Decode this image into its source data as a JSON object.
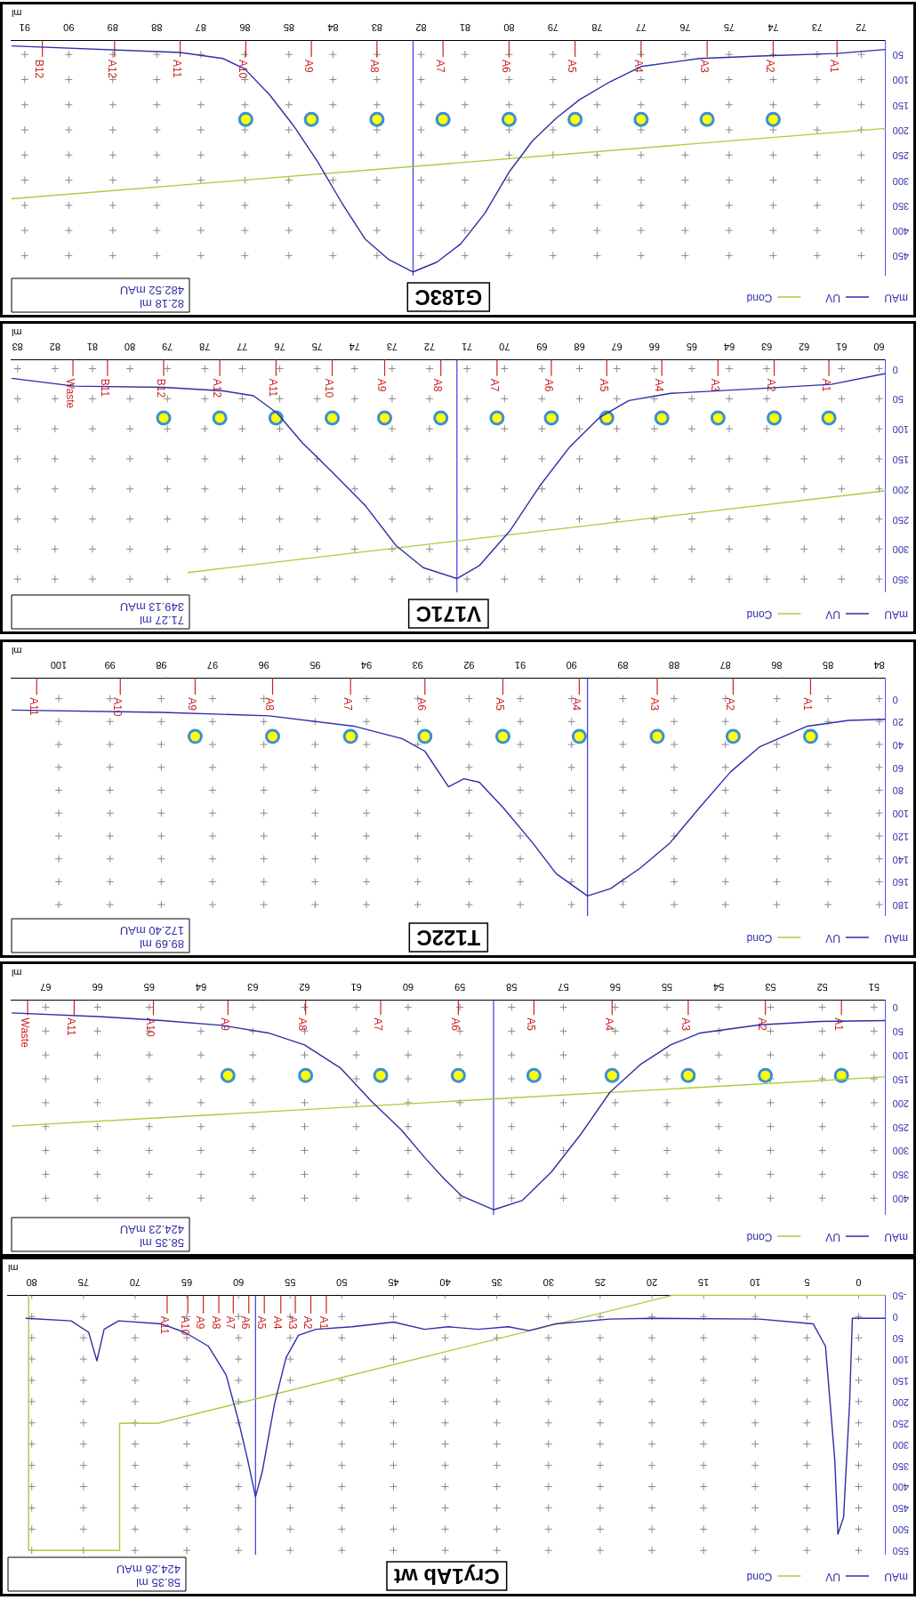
{
  "chart_data": [
    {
      "type": "line",
      "title": "Cry1Ab wt",
      "xlabel": "ml",
      "ylabel": "mAU",
      "xlim": [
        82.3,
        -2.6
      ],
      "ylim": [
        560,
        -50
      ],
      "xticks": [
        0,
        5,
        10,
        15,
        20,
        25,
        30,
        35,
        40,
        45,
        50,
        55,
        60,
        65,
        70,
        75,
        80
      ],
      "yticks": [
        -50,
        0,
        50,
        100,
        150,
        200,
        250,
        300,
        350,
        400,
        450,
        500,
        550
      ],
      "grid": true,
      "legend": "bottom right",
      "series": [
        {
          "name": "UV",
          "color": "#2e2ea8",
          "x": [
            -2.6,
            0.6,
            0.87,
            1.45,
            2.0,
            2.3,
            3.2,
            4.4,
            9.6,
            20.0,
            24.1,
            29.3,
            31.9,
            33.9,
            36.8,
            39.7,
            42.0,
            45.0,
            49.0,
            52.5,
            54.2,
            55.4,
            56.5,
            57.7,
            58.35,
            59.1,
            60.0,
            61.2,
            62.9,
            65.2,
            67.5,
            71.6,
            73.0,
            73.7,
            74.5,
            76.2,
            80.6
          ],
          "values": [
            4,
            4,
            204,
            472,
            512,
            338,
            70,
            17,
            6,
            4,
            6,
            17,
            33,
            24,
            30,
            24,
            30,
            13,
            24,
            30,
            44,
            97,
            204,
            365,
            424.26,
            338,
            245,
            137,
            70,
            37,
            17,
            10,
            30,
            104,
            37,
            10,
            4
          ]
        },
        {
          "name": "Cond",
          "color": "#a8cc3c",
          "x": [
            -2.6,
            18,
            67.8,
            71.5,
            71.5,
            80.3,
            80.3
          ],
          "values": [
            -50,
            -50,
            251,
            251,
            550,
            550,
            -50
          ]
        }
      ],
      "ref_lines": [
        {
          "axis": "x",
          "value": 58.35,
          "color": "#3b3bdf"
        },
        {
          "axis": "x",
          "value": 66.9,
          "label": "A11",
          "color": "#cc2222"
        },
        {
          "axis": "x",
          "value": 64.9,
          "label": "A10",
          "color": "#cc2222"
        },
        {
          "axis": "x",
          "value": 63.4,
          "label": "A9",
          "color": "#cc2222"
        },
        {
          "axis": "x",
          "value": 61.9,
          "label": "A8",
          "color": "#cc2222"
        },
        {
          "axis": "x",
          "value": 60.5,
          "label": "A7",
          "color": "#cc2222"
        },
        {
          "axis": "x",
          "value": 59.0,
          "label": "A6",
          "color": "#cc2222"
        },
        {
          "axis": "x",
          "value": 57.5,
          "label": "A5",
          "color": "#cc2222"
        },
        {
          "axis": "x",
          "value": 55.9,
          "label": "A4",
          "color": "#cc2222"
        },
        {
          "axis": "x",
          "value": 54.5,
          "label": "A3",
          "color": "#cc2222"
        },
        {
          "axis": "x",
          "value": 53.0,
          "label": "A2",
          "color": "#cc2222"
        },
        {
          "axis": "x",
          "value": 51.5,
          "label": "A1",
          "color": "#cc2222"
        }
      ],
      "annotations": [
        "58.35 ml",
        "424.26 mAU"
      ]
    },
    {
      "type": "line",
      "xlabel": "ml",
      "ylabel": "mAU",
      "xlim": [
        67.66,
        50.78
      ],
      "ylim": [
        435,
        -15
      ],
      "xticks": [
        51,
        52,
        53,
        54,
        55,
        56,
        57,
        58,
        59,
        60,
        61,
        62,
        63,
        64,
        65,
        66,
        67
      ],
      "yticks": [
        0,
        50,
        100,
        150,
        200,
        250,
        300,
        350,
        400
      ],
      "grid": true,
      "legend": "bottom right",
      "series": [
        {
          "name": "UV",
          "color": "#2e2ea8",
          "x": [
            50.78,
            52.05,
            53.2,
            54.36,
            54.93,
            55.5,
            56.1,
            56.67,
            57.24,
            57.8,
            58.35,
            58.97,
            59.3,
            59.67,
            60.13,
            60.7,
            61.3,
            62.0,
            62.7,
            63.6,
            64.75,
            65.9,
            67.66
          ],
          "values": [
            28,
            30,
            37,
            54,
            79,
            119,
            178,
            267,
            346,
            405,
            424.23,
            395,
            360,
            316,
            257,
            198,
            128,
            79,
            54,
            38,
            28,
            20,
            12
          ]
        },
        {
          "name": "Cond",
          "color": "#a8cc3c",
          "x": [
            50.78,
            67.66
          ],
          "values": [
            146,
            249
          ]
        },
        {
          "type": "scatter",
          "color": "#ffff00",
          "x": [
            63.48,
            61.98,
            60.53,
            59.03,
            57.57,
            56.06,
            54.59,
            53.1,
            51.63
          ],
          "values": [
            143,
            143,
            143,
            143,
            143,
            143,
            143,
            143,
            143
          ]
        }
      ],
      "ref_lines": [
        {
          "axis": "x",
          "value": 58.35,
          "color": "#3b3bdf"
        },
        {
          "axis": "x",
          "value": 67.35,
          "label": "Waste",
          "color": "#cc2222"
        },
        {
          "axis": "x",
          "value": 66.45,
          "label": "A11",
          "color": "#cc2222"
        },
        {
          "axis": "x",
          "value": 64.92,
          "label": "A10",
          "color": "#cc2222"
        },
        {
          "axis": "x",
          "value": 63.48,
          "label": "A9",
          "color": "#cc2222"
        },
        {
          "axis": "x",
          "value": 61.98,
          "label": "A8",
          "color": "#cc2222"
        },
        {
          "axis": "x",
          "value": 60.53,
          "label": "A7",
          "color": "#cc2222"
        },
        {
          "axis": "x",
          "value": 59.03,
          "label": "A6",
          "color": "#cc2222"
        },
        {
          "axis": "x",
          "value": 57.57,
          "label": "A5",
          "color": "#cc2222"
        },
        {
          "axis": "x",
          "value": 56.06,
          "label": "A4",
          "color": "#cc2222"
        },
        {
          "axis": "x",
          "value": 54.59,
          "label": "A3",
          "color": "#cc2222"
        },
        {
          "axis": "x",
          "value": 53.1,
          "label": "A2",
          "color": "#cc2222"
        },
        {
          "axis": "x",
          "value": 51.63,
          "label": "A1",
          "color": "#cc2222"
        }
      ],
      "annotations": [
        "58.35 ml",
        "424.23 mAU"
      ]
    },
    {
      "type": "line",
      "title": "T122C",
      "xlabel": "ml",
      "ylabel": "mAU",
      "xlim": [
        100.92,
        83.88
      ],
      "ylim": [
        190,
        -18
      ],
      "xticks": [
        84,
        85,
        86,
        87,
        88,
        89,
        90,
        91,
        92,
        93,
        94,
        95,
        96,
        97,
        98,
        99,
        100
      ],
      "yticks": [
        0,
        20,
        40,
        60,
        80,
        100,
        120,
        140,
        160,
        180
      ],
      "grid": true,
      "legend": "bottom right",
      "series": [
        {
          "name": "UV",
          "color": "#2e2ea8",
          "x": [
            83.88,
            84.6,
            85.4,
            86.33,
            86.9,
            87.5,
            88.08,
            88.66,
            89.24,
            89.69,
            89.83,
            90.3,
            90.76,
            91.34,
            91.8,
            92.1,
            92.4,
            92.86,
            93.3,
            94.25,
            95.9,
            97.98,
            100.92
          ],
          "values": [
            18,
            19,
            24,
            42,
            64,
            95,
            126,
            148,
            166,
            172.4,
            168,
            153,
            126,
            95,
            73,
            70,
            77,
            46,
            35,
            24,
            15,
            12,
            10
          ]
        },
        {
          "name": "Cond",
          "color": "#a8cc3c"
        },
        {
          "type": "scatter",
          "color": "#ffff00",
          "x": [
            97.34,
            95.83,
            94.31,
            92.86,
            91.34,
            89.85,
            88.33,
            86.85,
            85.34
          ],
          "values": [
            33,
            33,
            33,
            33,
            33,
            33,
            33,
            33,
            33
          ]
        }
      ],
      "ref_lines": [
        {
          "axis": "x",
          "value": 89.69,
          "color": "#3b3bdf"
        },
        {
          "axis": "x",
          "value": 100.43,
          "label": "A11",
          "color": "#cc2222"
        },
        {
          "axis": "x",
          "value": 98.8,
          "label": "A10",
          "color": "#cc2222"
        },
        {
          "axis": "x",
          "value": 97.34,
          "label": "A9",
          "color": "#cc2222"
        },
        {
          "axis": "x",
          "value": 95.83,
          "label": "A8",
          "color": "#cc2222"
        },
        {
          "axis": "x",
          "value": 94.31,
          "label": "A7",
          "color": "#cc2222"
        },
        {
          "axis": "x",
          "value": 92.86,
          "label": "A6",
          "color": "#cc2222"
        },
        {
          "axis": "x",
          "value": 91.34,
          "label": "A5",
          "color": "#cc2222"
        },
        {
          "axis": "x",
          "value": 89.85,
          "label": "A4",
          "color": "#cc2222"
        },
        {
          "axis": "x",
          "value": 88.33,
          "label": "A3",
          "color": "#cc2222"
        },
        {
          "axis": "x",
          "value": 86.85,
          "label": "A2",
          "color": "#cc2222"
        },
        {
          "axis": "x",
          "value": 85.34,
          "label": "A1",
          "color": "#cc2222"
        }
      ],
      "annotations": [
        "89.69 ml",
        "172.40 mAU"
      ]
    },
    {
      "type": "line",
      "title": "V171C",
      "xlabel": "ml",
      "ylabel": "mAU",
      "xlim": [
        83.16,
        59.83
      ],
      "ylim": [
        372,
        -15
      ],
      "xticks": [
        60,
        61,
        62,
        63,
        64,
        65,
        66,
        67,
        68,
        69,
        70,
        71,
        72,
        73,
        74,
        75,
        76,
        77,
        78,
        79,
        80,
        81,
        82,
        83
      ],
      "yticks": [
        0,
        50,
        100,
        150,
        200,
        250,
        300,
        350
      ],
      "grid": true,
      "legend": "bottom right",
      "series": [
        {
          "name": "UV",
          "color": "#2e2ea8",
          "x": [
            59.83,
            61.27,
            63.2,
            65.56,
            66.68,
            67.48,
            68.27,
            69.07,
            69.86,
            70.66,
            71.27,
            72.17,
            72.9,
            73.7,
            74.6,
            75.4,
            76.07,
            76.7,
            77.5,
            79.1,
            81.49,
            83.16
          ],
          "values": [
            8,
            26,
            33,
            41,
            53,
            82,
            131,
            196,
            270,
            327,
            349.13,
            331,
            294,
            229,
            172,
            123,
            74,
            45,
            37,
            31,
            29,
            16
          ]
        },
        {
          "name": "Cond",
          "color": "#a8cc3c",
          "x": [
            59.83,
            78.46
          ],
          "values": [
            203,
            339
          ]
        },
        {
          "type": "scatter",
          "color": "#ffff00",
          "x": [
            79.1,
            77.6,
            76.1,
            74.6,
            73.2,
            71.7,
            70.2,
            68.75,
            67.27,
            65.8,
            64.3,
            62.8,
            61.34
          ],
          "values": [
            82,
            82,
            82,
            82,
            82,
            82,
            82,
            82,
            82,
            82,
            82,
            82,
            82
          ]
        }
      ],
      "ref_lines": [
        {
          "axis": "x",
          "value": 71.27,
          "color": "#3b3bdf"
        },
        {
          "axis": "x",
          "value": 81.52,
          "label": "Waste",
          "color": "#cc2222"
        },
        {
          "axis": "x",
          "value": 80.6,
          "label": "B11",
          "color": "#cc2222"
        },
        {
          "axis": "x",
          "value": 79.1,
          "label": "B12",
          "color": "#cc2222"
        },
        {
          "axis": "x",
          "value": 77.6,
          "label": "A12",
          "color": "#cc2222"
        },
        {
          "axis": "x",
          "value": 76.1,
          "label": "A11",
          "color": "#cc2222"
        },
        {
          "axis": "x",
          "value": 74.6,
          "label": "A10",
          "color": "#cc2222"
        },
        {
          "axis": "x",
          "value": 73.2,
          "label": "A9",
          "color": "#cc2222"
        },
        {
          "axis": "x",
          "value": 71.7,
          "label": "A8",
          "color": "#cc2222"
        },
        {
          "axis": "x",
          "value": 70.2,
          "label": "A7",
          "color": "#cc2222"
        },
        {
          "axis": "x",
          "value": 68.75,
          "label": "A6",
          "color": "#cc2222"
        },
        {
          "axis": "x",
          "value": 67.27,
          "label": "A5",
          "color": "#cc2222"
        },
        {
          "axis": "x",
          "value": 65.8,
          "label": "A4",
          "color": "#cc2222"
        },
        {
          "axis": "x",
          "value": 64.3,
          "label": "A3",
          "color": "#cc2222"
        },
        {
          "axis": "x",
          "value": 62.8,
          "label": "A2",
          "color": "#cc2222"
        },
        {
          "axis": "x",
          "value": 61.34,
          "label": "A1",
          "color": "#cc2222"
        }
      ],
      "annotations": [
        "71.27 ml",
        "349.13 mAU"
      ]
    },
    {
      "type": "line",
      "title": "G183C",
      "xlabel": "ml",
      "ylabel": "mAU",
      "xlim": [
        91.3,
        71.45
      ],
      "ylim": [
        490,
        22
      ],
      "xticks": [
        72,
        73,
        74,
        75,
        76,
        77,
        78,
        79,
        80,
        81,
        82,
        83,
        84,
        85,
        86,
        87,
        88,
        89,
        90,
        91
      ],
      "yticks": [
        50,
        100,
        150,
        200,
        250,
        300,
        350,
        400,
        450
      ],
      "grid": true,
      "legend": "bottom right",
      "series": [
        {
          "name": "UV",
          "color": "#2e2ea8",
          "x": [
            71.45,
            72.55,
            74.3,
            75.67,
            77.0,
            77.7,
            78.4,
            78.92,
            79.47,
            80.0,
            80.55,
            81.1,
            81.64,
            82.18,
            82.73,
            83.27,
            83.8,
            84.35,
            84.9,
            85.44,
            86.0,
            86.5,
            87.47,
            91.3
          ],
          "values": [
            40,
            48,
            53,
            58,
            74,
            104,
            140,
            176,
            222,
            284,
            366,
            427,
            463,
            482.52,
            458,
            417,
            345,
            263,
            191,
            130,
            79,
            58,
            46,
            33
          ]
        },
        {
          "name": "Cond",
          "color": "#a8cc3c",
          "x": [
            71.45,
            91.3
          ],
          "values": [
            197,
            337
          ]
        },
        {
          "type": "scatter",
          "color": "#ffff00",
          "x": [
            85.98,
            84.49,
            83.0,
            81.5,
            80.0,
            78.5,
            77.0,
            75.5,
            74.0
          ],
          "values": [
            179,
            179,
            179,
            179,
            179,
            179,
            179,
            179,
            179
          ]
        }
      ],
      "ref_lines": [
        {
          "axis": "x",
          "value": 82.18,
          "color": "#3b3bdf"
        },
        {
          "axis": "x",
          "value": 90.6,
          "label": "B12",
          "color": "#cc2222"
        },
        {
          "axis": "x",
          "value": 88.96,
          "label": "A12",
          "color": "#cc2222"
        },
        {
          "axis": "x",
          "value": 87.47,
          "label": "A11",
          "color": "#cc2222"
        },
        {
          "axis": "x",
          "value": 85.98,
          "label": "A10",
          "color": "#cc2222"
        },
        {
          "axis": "x",
          "value": 84.49,
          "label": "A9",
          "color": "#cc2222"
        },
        {
          "axis": "x",
          "value": 83.0,
          "label": "A8",
          "color": "#cc2222"
        },
        {
          "axis": "x",
          "value": 81.5,
          "label": "A7",
          "color": "#cc2222"
        },
        {
          "axis": "x",
          "value": 80.0,
          "label": "A6",
          "color": "#cc2222"
        },
        {
          "axis": "x",
          "value": 78.5,
          "label": "A5",
          "color": "#cc2222"
        },
        {
          "axis": "x",
          "value": 77.0,
          "label": "A4",
          "color": "#cc2222"
        },
        {
          "axis": "x",
          "value": 75.5,
          "label": "A3",
          "color": "#cc2222"
        },
        {
          "axis": "x",
          "value": 74.0,
          "label": "A2",
          "color": "#cc2222"
        },
        {
          "axis": "x",
          "value": 72.55,
          "label": "A1",
          "color": "#cc2222"
        }
      ],
      "annotations": [
        "82.18 ml",
        "482.52 mAU"
      ]
    }
  ]
}
